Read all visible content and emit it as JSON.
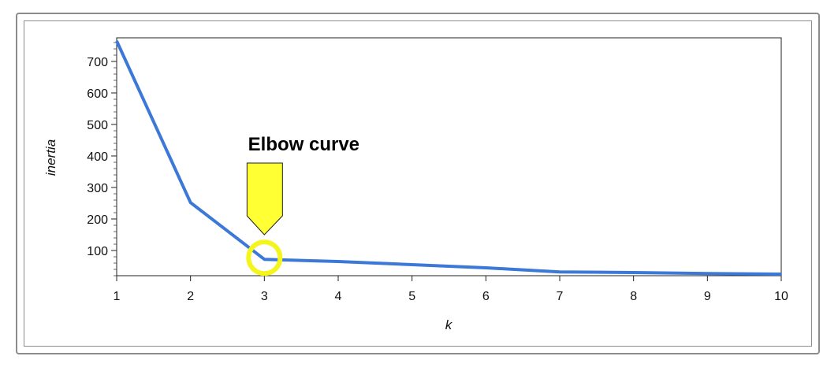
{
  "chart_data": {
    "type": "line",
    "title": "",
    "xlabel": "k",
    "ylabel": "inertia",
    "x": [
      1,
      2,
      3,
      4,
      5,
      6,
      7,
      8,
      9,
      10
    ],
    "series": [
      {
        "values": [
          765,
          252,
          72,
          65,
          55,
          45,
          32,
          30,
          27,
          25
        ]
      }
    ],
    "xlim": [
      1,
      10
    ],
    "ylim": [
      20,
      775
    ],
    "xticks": [
      1,
      2,
      3,
      4,
      5,
      6,
      7,
      8,
      9,
      10
    ],
    "yticks": [
      100,
      200,
      300,
      400,
      500,
      600,
      700
    ],
    "grid": false,
    "legend": "none",
    "annotation": {
      "text": "Elbow curve",
      "x": 3,
      "y": 72
    },
    "colors": {
      "line": "#3b78d8",
      "highlight": "#f5f51e",
      "arrow_fill": "#ffff33"
    }
  }
}
